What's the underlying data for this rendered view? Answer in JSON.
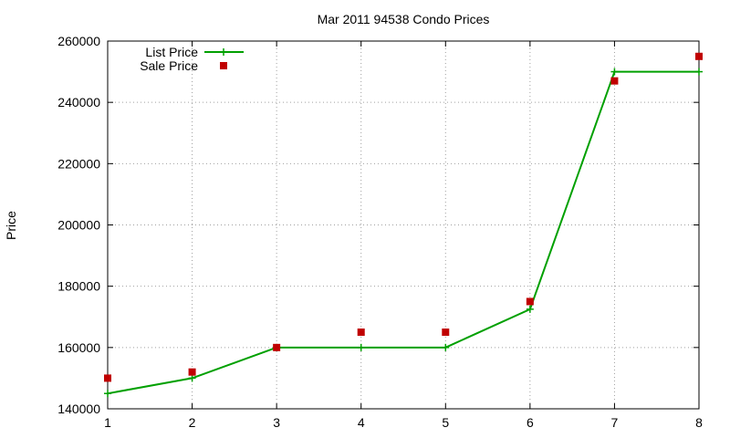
{
  "chart_data": {
    "type": "line",
    "title": "Mar 2011 94538 Condo Prices",
    "xlabel": "",
    "ylabel": "Price",
    "x": [
      1,
      2,
      3,
      4,
      5,
      6,
      7,
      8
    ],
    "xlim": [
      1,
      8
    ],
    "ylim": [
      140000,
      260000
    ],
    "xticks": [
      "1",
      "2",
      "3",
      "4",
      "5",
      "6",
      "7",
      "8"
    ],
    "yticks": [
      "140000",
      "160000",
      "180000",
      "200000",
      "220000",
      "240000",
      "260000"
    ],
    "grid": true,
    "legend_position": "top-left",
    "series": [
      {
        "name": "List Price",
        "style": "lines+points",
        "marker": "plus",
        "color": "#00a000",
        "values": [
          145000,
          150000,
          160000,
          160000,
          160000,
          172500,
          250000,
          250000
        ]
      },
      {
        "name": "Sale Price",
        "style": "points",
        "marker": "square",
        "color": "#c00000",
        "values": [
          150000,
          152000,
          160000,
          165000,
          165000,
          175000,
          247000,
          255000
        ]
      }
    ]
  }
}
